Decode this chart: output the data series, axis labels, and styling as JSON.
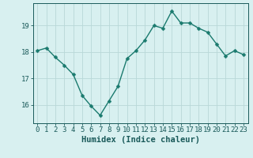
{
  "x": [
    0,
    1,
    2,
    3,
    4,
    5,
    6,
    7,
    8,
    9,
    10,
    11,
    12,
    13,
    14,
    15,
    16,
    17,
    18,
    19,
    20,
    21,
    22,
    23
  ],
  "y": [
    18.05,
    18.15,
    17.8,
    17.5,
    17.15,
    16.35,
    15.95,
    15.6,
    16.15,
    16.7,
    17.75,
    18.05,
    18.45,
    19.0,
    18.9,
    19.55,
    19.1,
    19.1,
    18.9,
    18.75,
    18.3,
    17.85,
    18.05,
    17.9
  ],
  "line_color": "#1a7a6e",
  "marker_color": "#1a7a6e",
  "bg_color": "#d8f0f0",
  "grid_color": "#b8d8d8",
  "xlabel": "Humidex (Indice chaleur)",
  "ylim": [
    15.3,
    19.85
  ],
  "yticks": [
    16,
    17,
    18,
    19
  ],
  "xticks": [
    0,
    1,
    2,
    3,
    4,
    5,
    6,
    7,
    8,
    9,
    10,
    11,
    12,
    13,
    14,
    15,
    16,
    17,
    18,
    19,
    20,
    21,
    22,
    23
  ],
  "font_color": "#1a5a5a",
  "tick_fontsize": 6.5,
  "label_fontsize": 7.5,
  "line_width": 1.0,
  "marker_size": 2.5
}
